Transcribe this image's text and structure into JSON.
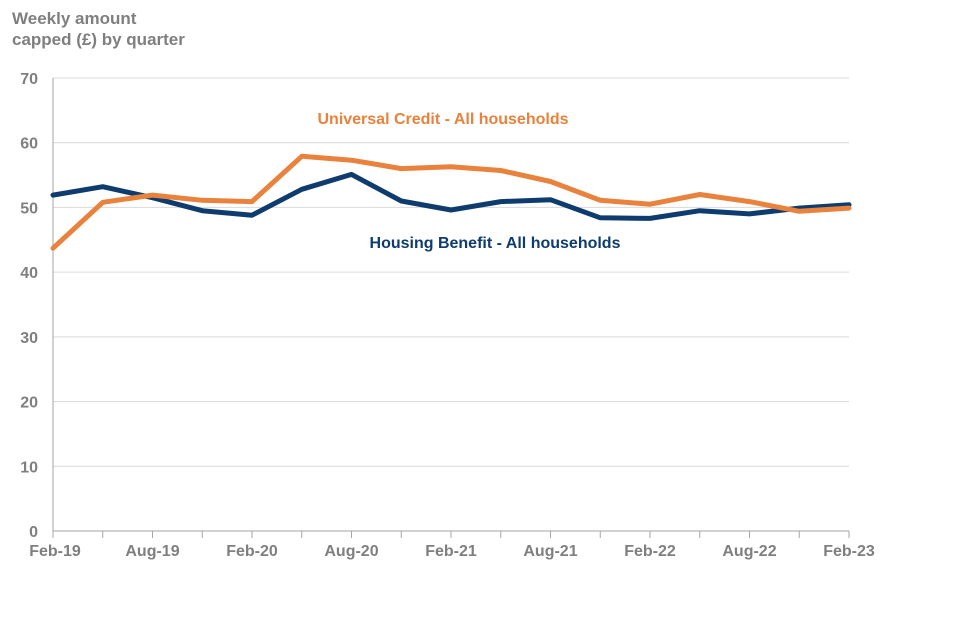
{
  "chart_data": {
    "type": "line",
    "title": "",
    "ylabel_lines": [
      "Weekly amount",
      "capped (£) by quarter"
    ],
    "xlabel": "",
    "ylim": [
      0,
      70
    ],
    "yticks": [
      0,
      10,
      20,
      30,
      40,
      50,
      60,
      70
    ],
    "grid": true,
    "categories": [
      "Feb-19",
      "May-19",
      "Aug-19",
      "Nov-19",
      "Feb-20",
      "May-20",
      "Aug-20",
      "Nov-20",
      "Feb-21",
      "May-21",
      "Aug-21",
      "Nov-21",
      "Feb-22",
      "May-22",
      "Aug-22",
      "Nov-22",
      "Feb-23"
    ],
    "xtick_labels": [
      {
        "index": 0,
        "label": "Feb-19"
      },
      {
        "index": 2,
        "label": "Aug-19"
      },
      {
        "index": 4,
        "label": "Feb-20"
      },
      {
        "index": 6,
        "label": "Aug-20"
      },
      {
        "index": 8,
        "label": "Feb-21"
      },
      {
        "index": 10,
        "label": "Aug-21"
      },
      {
        "index": 12,
        "label": "Feb-22"
      },
      {
        "index": 14,
        "label": "Aug-22"
      },
      {
        "index": 16,
        "label": "Feb-23"
      }
    ],
    "series": [
      {
        "name": "Housing Benefit - All households",
        "color": "#0f3c6e",
        "values": [
          51.9,
          53.2,
          51.5,
          49.5,
          48.8,
          52.8,
          55.1,
          51.0,
          49.6,
          50.9,
          51.2,
          48.4,
          48.3,
          49.5,
          49.0,
          49.9,
          50.4
        ]
      },
      {
        "name": "Universal Credit - All households",
        "color": "#e8823c",
        "values": [
          43.7,
          50.8,
          51.9,
          51.1,
          50.9,
          57.9,
          57.3,
          56.0,
          56.3,
          55.7,
          54.0,
          51.1,
          50.5,
          52.0,
          50.9,
          49.4,
          49.9
        ]
      }
    ],
    "annotations": [
      {
        "text": "Universal Credit - All households",
        "series": 1,
        "color": "#e8823c"
      },
      {
        "text": "Housing Benefit - All households",
        "series": 0,
        "color": "#0f3c6e"
      }
    ]
  }
}
